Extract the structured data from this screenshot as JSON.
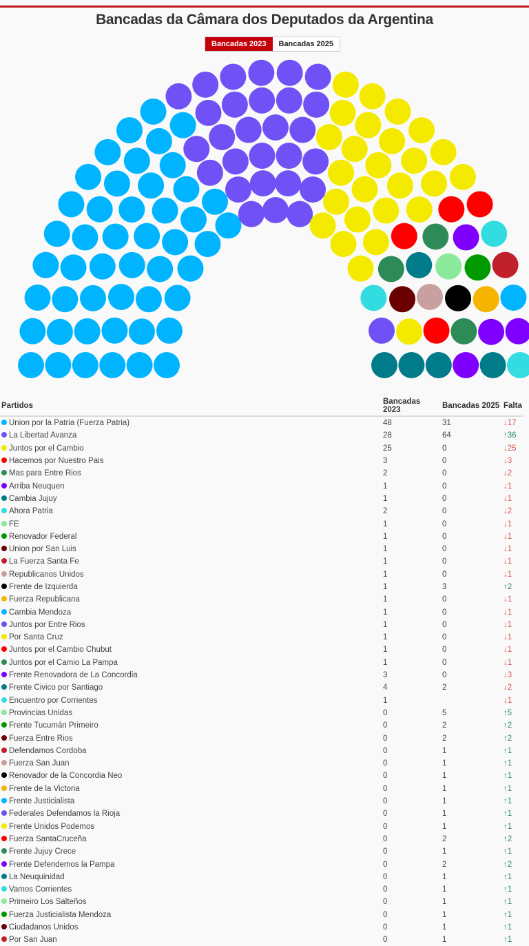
{
  "title": "Bancadas da Câmara dos Deputados da Argentina",
  "toggle": {
    "options": [
      "Bancadas 2023",
      "Bancadas 2025"
    ],
    "active": "Bancadas 2023"
  },
  "accent_color": "#c4000a",
  "table": {
    "headers": [
      "Partidos",
      "Bancadas 2023",
      "Bancadas 2025",
      "Falta"
    ],
    "rows": [
      {
        "party": "Union por la Patria (Fuerza Patria)",
        "color": "#00b4ff",
        "b2023": "48",
        "b2025": "31",
        "falta": "↓17",
        "dir": "down"
      },
      {
        "party": "La Libertad Avanza",
        "color": "#6f51f5",
        "b2023": "28",
        "b2025": "64",
        "falta": "↑36",
        "dir": "up"
      },
      {
        "party": "Juntos por el Cambio",
        "color": "#f4ea00",
        "b2023": "25",
        "b2025": "0",
        "falta": "↓25",
        "dir": "down"
      },
      {
        "party": "Hacemos por Nuestro Pais",
        "color": "#ff0000",
        "b2023": "3",
        "b2025": "0",
        "falta": "↓3",
        "dir": "down"
      },
      {
        "party": "Mas para Entre Rios",
        "color": "#2e8b57",
        "b2023": "2",
        "b2025": "0",
        "falta": "↓2",
        "dir": "down"
      },
      {
        "party": "Arriba Neuquen",
        "color": "#7f00ff",
        "b2023": "1",
        "b2025": "0",
        "falta": "↓1",
        "dir": "down"
      },
      {
        "party": "Cambia Jujuy",
        "color": "#007b8a",
        "b2023": "1",
        "b2025": "0",
        "falta": "↓1",
        "dir": "down"
      },
      {
        "party": "Ahora Patria",
        "color": "#33dce0",
        "b2023": "2",
        "b2025": "0",
        "falta": "↓2",
        "dir": "down"
      },
      {
        "party": "FE",
        "color": "#8be99b",
        "b2023": "1",
        "b2025": "0",
        "falta": "↓1",
        "dir": "down"
      },
      {
        "party": "Renovador Federal",
        "color": "#009900",
        "b2023": "1",
        "b2025": "0",
        "falta": "↓1",
        "dir": "down"
      },
      {
        "party": "Union por San Luis",
        "color": "#6b0000",
        "b2023": "1",
        "b2025": "0",
        "falta": "↓1",
        "dir": "down"
      },
      {
        "party": "La Fuerza Santa Fe",
        "color": "#c0202a",
        "b2023": "1",
        "b2025": "0",
        "falta": "↓1",
        "dir": "down"
      },
      {
        "party": "Republicanos Unidos",
        "color": "#c9a0a0",
        "b2023": "1",
        "b2025": "0",
        "falta": "↓1",
        "dir": "down"
      },
      {
        "party": "Frente de Izquierda",
        "color": "#000000",
        "b2023": "1",
        "b2025": "3",
        "falta": "↑2",
        "dir": "up"
      },
      {
        "party": "Fuerza Republicana",
        "color": "#f5b400",
        "b2023": "1",
        "b2025": "0",
        "falta": "↓1",
        "dir": "down"
      },
      {
        "party": "Cambia Mendoza",
        "color": "#00b4ff",
        "b2023": "1",
        "b2025": "0",
        "falta": "↓1",
        "dir": "down"
      },
      {
        "party": "Juntos por Entre Rios",
        "color": "#6f51f5",
        "b2023": "1",
        "b2025": "0",
        "falta": "↓1",
        "dir": "down"
      },
      {
        "party": "Por Santa Cruz",
        "color": "#f4ea00",
        "b2023": "1",
        "b2025": "0",
        "falta": "↓1",
        "dir": "down"
      },
      {
        "party": "Juntos por el Cambio Chubut",
        "color": "#ff0000",
        "b2023": "1",
        "b2025": "0",
        "falta": "↓1",
        "dir": "down"
      },
      {
        "party": "Juntos por el Camio La Pampa",
        "color": "#2e8b57",
        "b2023": "1",
        "b2025": "0",
        "falta": "↓1",
        "dir": "down"
      },
      {
        "party": "Frente Renovadora de La Concordia",
        "color": "#7f00ff",
        "b2023": "3",
        "b2025": "0",
        "falta": "↓3",
        "dir": "down"
      },
      {
        "party": "Frente Civico por Santiago",
        "color": "#007b8a",
        "b2023": "4",
        "b2025": "2",
        "falta": "↓2",
        "dir": "down"
      },
      {
        "party": "Encuentro por Corrientes",
        "color": "#33dce0",
        "b2023": "1",
        "b2025": "",
        "falta": "↓1",
        "dir": "down"
      },
      {
        "party": "Provincias Unidas",
        "color": "#8be99b",
        "b2023": "0",
        "b2025": "5",
        "falta": "↑5",
        "dir": "up"
      },
      {
        "party": "Frente Tucumán Primeiro",
        "color": "#009900",
        "b2023": "0",
        "b2025": "2",
        "falta": "↑2",
        "dir": "up"
      },
      {
        "party": "Fuerza Entre Rios",
        "color": "#6b0000",
        "b2023": "0",
        "b2025": "2",
        "falta": "↑2",
        "dir": "up"
      },
      {
        "party": "Defendamos Cordoba",
        "color": "#c0202a",
        "b2023": "0",
        "b2025": "1",
        "falta": "↑1",
        "dir": "up"
      },
      {
        "party": "Fuerza San Juan",
        "color": "#c9a0a0",
        "b2023": "0",
        "b2025": "1",
        "falta": "↑1",
        "dir": "up"
      },
      {
        "party": "Renovador de la Concordia Neo",
        "color": "#000000",
        "b2023": "0",
        "b2025": "1",
        "falta": "↑1",
        "dir": "up"
      },
      {
        "party": "Frente de la Victoria",
        "color": "#f5b400",
        "b2023": "0",
        "b2025": "1",
        "falta": "↑1",
        "dir": "up"
      },
      {
        "party": "Frente Justicialista",
        "color": "#00b4ff",
        "b2023": "0",
        "b2025": "1",
        "falta": "↑1",
        "dir": "up"
      },
      {
        "party": "Federales Defendamos la Rioja",
        "color": "#6f51f5",
        "b2023": "0",
        "b2025": "1",
        "falta": "↑1",
        "dir": "up"
      },
      {
        "party": "Frente Unidos Podemos",
        "color": "#f4ea00",
        "b2023": "0",
        "b2025": "1",
        "falta": "↑1",
        "dir": "up"
      },
      {
        "party": "Fuerza SantaCruceña",
        "color": "#ff0000",
        "b2023": "0",
        "b2025": "2",
        "falta": "↑2",
        "dir": "up"
      },
      {
        "party": "Frente Jujuy Crece",
        "color": "#2e8b57",
        "b2023": "0",
        "b2025": "1",
        "falta": "↑1",
        "dir": "up"
      },
      {
        "party": "Frente Defendemos la Pampa",
        "color": "#7f00ff",
        "b2023": "0",
        "b2025": "2",
        "falta": "↑2",
        "dir": "up"
      },
      {
        "party": "La Neuquinidad",
        "color": "#007b8a",
        "b2023": "0",
        "b2025": "1",
        "falta": "↑1",
        "dir": "up"
      },
      {
        "party": "Vamos Corrientes",
        "color": "#33dce0",
        "b2023": "0",
        "b2025": "1",
        "falta": "↑1",
        "dir": "up"
      },
      {
        "party": "Primeiro Los Salteños",
        "color": "#8be99b",
        "b2023": "0",
        "b2025": "1",
        "falta": "↑1",
        "dir": "up"
      },
      {
        "party": "Fuerza Justicialista Mendoza",
        "color": "#009900",
        "b2023": "0",
        "b2025": "1",
        "falta": "↑1",
        "dir": "up"
      },
      {
        "party": "Ciudadanos Unidos",
        "color": "#6b0000",
        "b2023": "0",
        "b2025": "1",
        "falta": "↑1",
        "dir": "up"
      },
      {
        "party": "Por San Juan",
        "color": "#c0202a",
        "b2023": "0",
        "b2025": "1",
        "falta": "↑1",
        "dir": "up"
      }
    ]
  }
}
